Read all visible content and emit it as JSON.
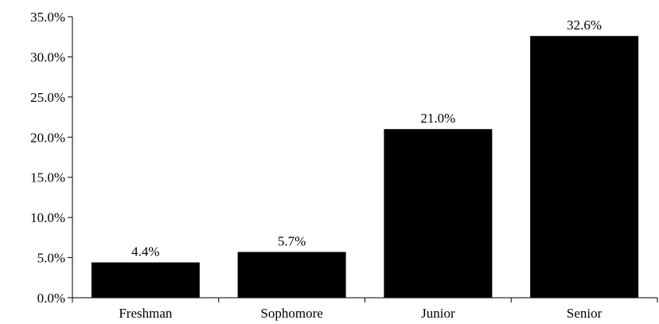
{
  "chart_data": {
    "type": "bar",
    "categories": [
      "Freshman",
      "Sophomore",
      "Junior",
      "Senior"
    ],
    "values": [
      4.4,
      5.7,
      21.0,
      32.6
    ],
    "data_labels": [
      "4.4%",
      "5.7%",
      "21.0%",
      "32.6%"
    ],
    "yticks": [
      0,
      5,
      10,
      15,
      20,
      25,
      30,
      35
    ],
    "ytick_labels": [
      "0.0%",
      "5.0%",
      "10.0%",
      "15.0%",
      "20.0%",
      "25.0%",
      "30.0%",
      "35.0%"
    ],
    "ylim": [
      0,
      35
    ],
    "grid": false,
    "bar_color": "#000000",
    "title": "",
    "xlabel": "",
    "ylabel": ""
  }
}
